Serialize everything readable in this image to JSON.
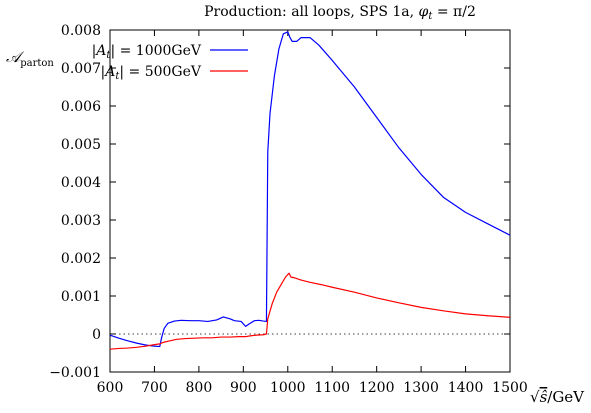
{
  "chart_data": {
    "type": "line",
    "title": "Production: all loops, SPS 1a, φ_t = π/2",
    "xlabel": "√ŝ/GeV",
    "ylabel": "𝒜_parton",
    "xlim": [
      600,
      1500
    ],
    "ylim": [
      -0.001,
      0.008
    ],
    "xticks": [
      600,
      700,
      800,
      900,
      1000,
      1100,
      1200,
      1300,
      1400,
      1500
    ],
    "yticks": [
      -0.001,
      0,
      0.001,
      0.002,
      0.003,
      0.004,
      0.005,
      0.006,
      0.007,
      0.008
    ],
    "ytick_labels": [
      "−0.001",
      "0",
      "0.001",
      "0.002",
      "0.003",
      "0.004",
      "0.005",
      "0.006",
      "0.007",
      "0.008"
    ],
    "zero_line": "dotted",
    "grid": false,
    "legend_position": "top-left",
    "series": [
      {
        "name": "|A_t| = 1000GeV",
        "color": "#0000ff",
        "x": [
          600,
          620,
          640,
          660,
          680,
          700,
          712,
          716,
          722,
          730,
          745,
          760,
          780,
          800,
          820,
          840,
          855,
          870,
          880,
          895,
          905,
          915,
          925,
          935,
          945,
          952,
          955,
          960,
          970,
          980,
          990,
          1000,
          1005,
          1010,
          1020,
          1030,
          1040,
          1050,
          1070,
          1100,
          1150,
          1200,
          1250,
          1300,
          1350,
          1400,
          1450,
          1500
        ],
        "y": [
          -3e-05,
          -0.00011,
          -0.00018,
          -0.00024,
          -0.00029,
          -0.00032,
          -0.00033,
          -0.0001,
          0.00015,
          0.00028,
          0.00034,
          0.00036,
          0.00035,
          0.00035,
          0.00033,
          0.00037,
          0.00045,
          0.0004,
          0.00035,
          0.00033,
          0.0002,
          0.00028,
          0.00035,
          0.00036,
          0.00034,
          0.00033,
          0.0048,
          0.0058,
          0.0068,
          0.0075,
          0.0079,
          0.00795,
          0.0078,
          0.0077,
          0.0077,
          0.0078,
          0.0078,
          0.0078,
          0.0076,
          0.0072,
          0.0065,
          0.0057,
          0.0049,
          0.0042,
          0.0036,
          0.0032,
          0.0029,
          0.0026
        ]
      },
      {
        "name": "|A_t| = 500GeV",
        "color": "#ff0000",
        "x": [
          600,
          620,
          640,
          660,
          680,
          700,
          712,
          720,
          735,
          750,
          770,
          790,
          810,
          830,
          850,
          870,
          890,
          905,
          915,
          930,
          945,
          952,
          955,
          965,
          975,
          985,
          995,
          1003,
          1007,
          1015,
          1030,
          1050,
          1075,
          1100,
          1150,
          1200,
          1250,
          1300,
          1350,
          1400,
          1450,
          1500
        ],
        "y": [
          -0.0004,
          -0.00038,
          -0.00037,
          -0.00035,
          -0.00032,
          -0.00028,
          -0.00026,
          -0.00022,
          -0.00018,
          -0.00014,
          -0.00012,
          -0.00011,
          -0.0001,
          -0.0001,
          -8e-05,
          -8e-05,
          -7e-05,
          -7e-05,
          -5e-05,
          -3e-05,
          -2e-05,
          0.0,
          0.0004,
          0.0008,
          0.0011,
          0.0013,
          0.0015,
          0.0016,
          0.0015,
          0.00148,
          0.00142,
          0.00136,
          0.0013,
          0.00123,
          0.0011,
          0.00095,
          0.00082,
          0.0007,
          0.00061,
          0.00053,
          0.00048,
          0.00044
        ]
      }
    ]
  }
}
